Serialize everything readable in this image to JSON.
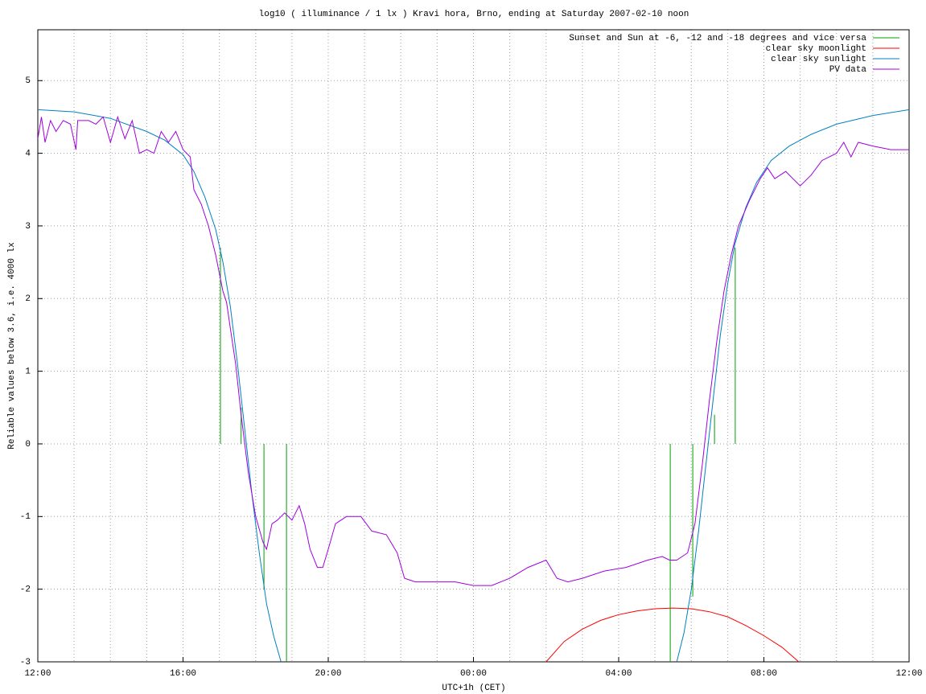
{
  "chart_data": {
    "type": "line",
    "title": "log10 ( illuminance / 1 lx ) Kravi hora, Brno, ending at Saturday 2007-02-10 noon",
    "x_label": "UTC+1h (CET)",
    "y_label": "Reliable values below 3.6, i.e. 4000 lx",
    "xlim": [
      0,
      24
    ],
    "ylim": [
      -3,
      5.7
    ],
    "xticks": [
      {
        "value": 0,
        "label": "12:00"
      },
      {
        "value": 4,
        "label": "16:00"
      },
      {
        "value": 8,
        "label": "20:00"
      },
      {
        "value": 12,
        "label": "00:00"
      },
      {
        "value": 16,
        "label": "04:00"
      },
      {
        "value": 20,
        "label": "08:00"
      },
      {
        "value": 24,
        "label": "12:00"
      }
    ],
    "xminorticks": [
      1,
      2,
      3,
      5,
      6,
      7,
      9,
      10,
      11,
      13,
      14,
      15,
      17,
      18,
      19,
      21,
      22,
      23
    ],
    "yticks": [
      -3,
      -2,
      -1,
      0,
      1,
      2,
      3,
      4,
      5
    ],
    "grid": true,
    "legend": "top-right",
    "series": [
      {
        "name": "Sunset and Sun at -6, -12 and -18 degrees and vice versa",
        "color": "#00a000",
        "x": [
          5.03,
          5.03,
          null,
          5.6,
          5.6,
          null,
          6.23,
          6.23,
          null,
          6.85,
          6.85,
          null,
          17.42,
          17.42,
          null,
          18.04,
          18.04,
          null,
          18.64,
          18.64,
          null,
          19.21,
          19.21
        ],
        "values": [
          0,
          2.7,
          null,
          0,
          0.5,
          null,
          0,
          -2.0,
          null,
          0,
          -3,
          null,
          0,
          -3,
          null,
          0,
          -2.1,
          null,
          0,
          0.4,
          null,
          0,
          2.7
        ]
      },
      {
        "name": "clear sky moonlight",
        "color": "#ff0000",
        "x": [
          14,
          14.5,
          15,
          15.5,
          16,
          16.5,
          17,
          17.5,
          18,
          18.5,
          19,
          19.5,
          20,
          20.5,
          20.96
        ],
        "values": [
          -3,
          -2.72,
          -2.55,
          -2.43,
          -2.35,
          -2.3,
          -2.27,
          -2.26,
          -2.27,
          -2.31,
          -2.38,
          -2.5,
          -2.64,
          -2.8,
          -3
        ]
      },
      {
        "name": "clear sky sunlight",
        "color": "#0080c0",
        "x": [
          0,
          1,
          2,
          3,
          3.5,
          4,
          4.3,
          4.6,
          4.9,
          5.1,
          5.3,
          5.5,
          5.7,
          5.9,
          6.1,
          6.3,
          6.5,
          6.7,
          12,
          17.6,
          17.8,
          18.0,
          18.2,
          18.4,
          18.6,
          18.8,
          19.0,
          19.2,
          19.5,
          19.8,
          20.2,
          20.7,
          21.3,
          22,
          23,
          24
        ],
        "values": [
          4.6,
          4.57,
          4.48,
          4.3,
          4.18,
          3.98,
          3.75,
          3.4,
          2.95,
          2.5,
          1.9,
          1.1,
          0.2,
          -0.7,
          -1.5,
          -2.2,
          -2.65,
          -3.0,
          null,
          -3.0,
          -2.6,
          -2.0,
          -1.2,
          -0.3,
          0.6,
          1.5,
          2.2,
          2.75,
          3.25,
          3.6,
          3.9,
          4.1,
          4.26,
          4.4,
          4.52,
          4.6
        ]
      },
      {
        "name": "PV data",
        "color": "#a000e0",
        "x": [
          0,
          0.1,
          0.2,
          0.35,
          0.5,
          0.7,
          0.9,
          1.05,
          1.1,
          1.4,
          1.6,
          1.8,
          2.0,
          2.2,
          2.4,
          2.6,
          2.8,
          3.0,
          3.2,
          3.4,
          3.6,
          3.8,
          4.0,
          4.2,
          4.3,
          4.5,
          4.7,
          4.9,
          5.0,
          5.1,
          5.2,
          5.3,
          5.45,
          5.6,
          5.8,
          6.0,
          6.2,
          6.3,
          6.45,
          6.6,
          6.8,
          7.0,
          7.2,
          7.35,
          7.5,
          7.7,
          7.85,
          8.0,
          8.2,
          8.5,
          8.9,
          9.2,
          9.6,
          9.9,
          10.1,
          10.4,
          11,
          11.5,
          12,
          12.5,
          13,
          13.5,
          14,
          14.3,
          14.6,
          15.0,
          15.6,
          16.2,
          16.8,
          17.2,
          17.4,
          17.6,
          17.9,
          18.1,
          18.3,
          18.5,
          18.7,
          18.9,
          19.1,
          19.3,
          19.6,
          19.9,
          20.1,
          20.3,
          20.6,
          21.0,
          21.3,
          21.6,
          22.0,
          22.2,
          22.4,
          22.6,
          23,
          23.5,
          24
        ],
        "values": [
          4.2,
          4.5,
          4.15,
          4.45,
          4.3,
          4.45,
          4.4,
          4.05,
          4.45,
          4.45,
          4.4,
          4.5,
          4.15,
          4.5,
          4.2,
          4.45,
          4.0,
          4.05,
          4.0,
          4.3,
          4.15,
          4.3,
          4.05,
          3.95,
          3.5,
          3.3,
          3.0,
          2.6,
          2.35,
          2.1,
          1.95,
          1.6,
          1.1,
          0.4,
          -0.4,
          -1.0,
          -1.35,
          -1.45,
          -1.1,
          -1.05,
          -0.95,
          -1.05,
          -0.85,
          -1.1,
          -1.45,
          -1.7,
          -1.7,
          -1.45,
          -1.1,
          -1.0,
          -1.0,
          -1.2,
          -1.25,
          -1.5,
          -1.85,
          -1.9,
          -1.9,
          -1.9,
          -1.95,
          -1.95,
          -1.85,
          -1.7,
          -1.6,
          -1.85,
          -1.9,
          -1.85,
          -1.75,
          -1.7,
          -1.6,
          -1.55,
          -1.6,
          -1.6,
          -1.5,
          -1.1,
          -0.3,
          0.6,
          1.4,
          2.1,
          2.6,
          3.0,
          3.35,
          3.65,
          3.8,
          3.65,
          3.75,
          3.55,
          3.7,
          3.9,
          4.0,
          4.15,
          3.95,
          4.15,
          4.1,
          4.05,
          4.05
        ]
      }
    ]
  }
}
